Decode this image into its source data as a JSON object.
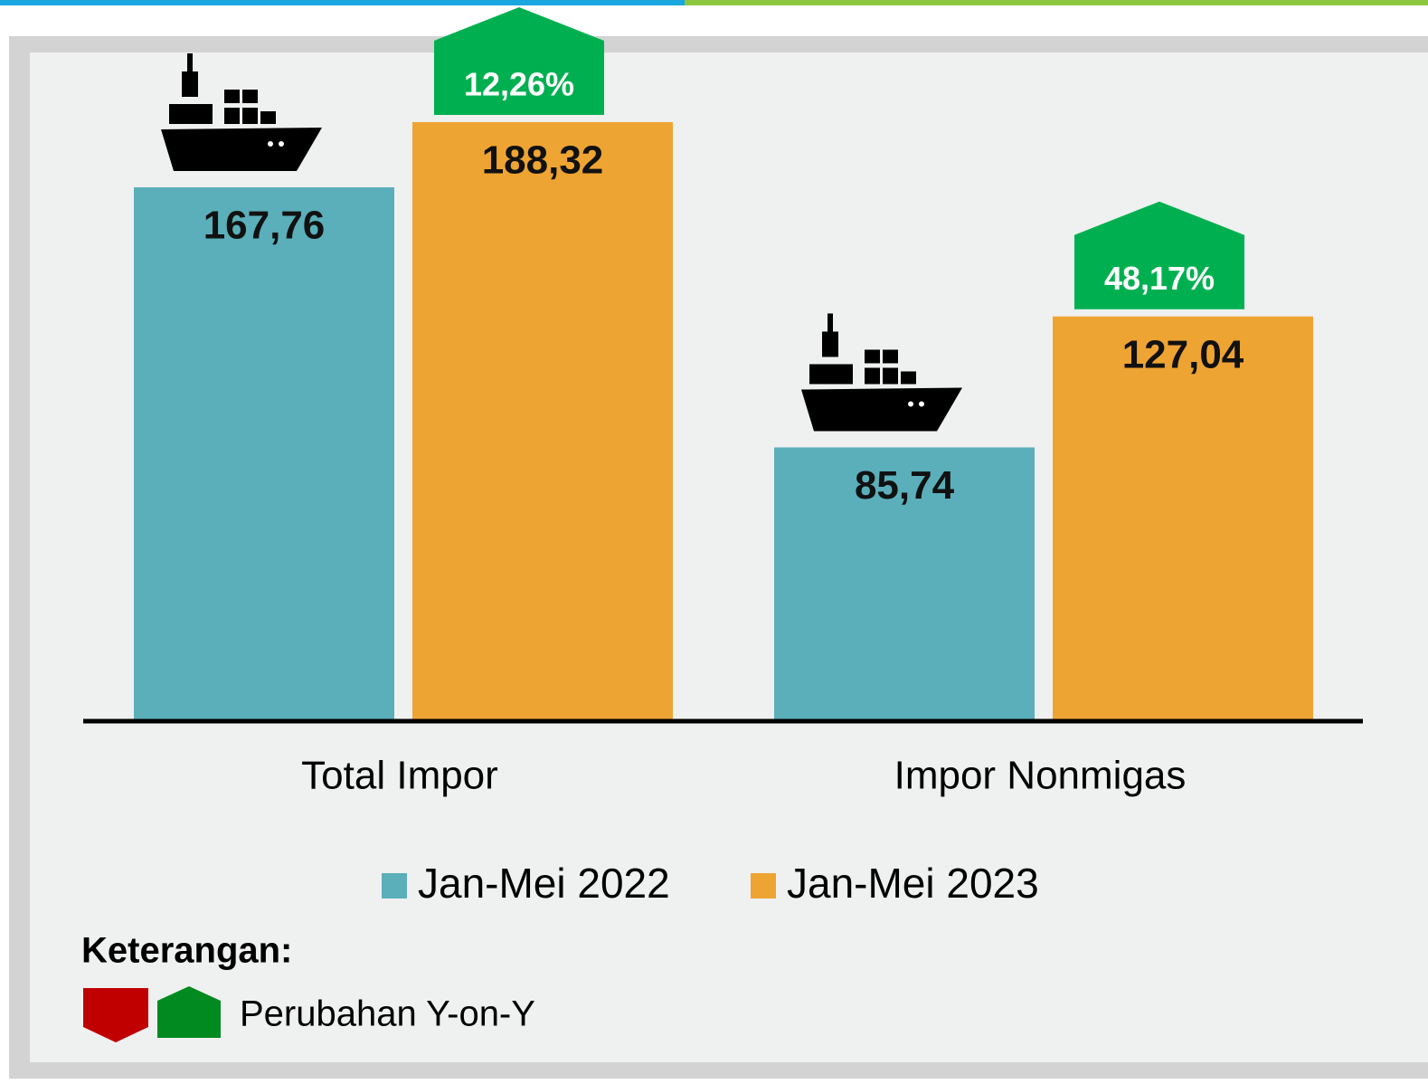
{
  "chart_data": {
    "type": "bar",
    "categories": [
      "Total Impor",
      "Impor Nonmigas"
    ],
    "series": [
      {
        "name": "Jan-Mei 2022",
        "color": "#5aafba",
        "values": [
          167.76,
          85.74
        ],
        "value_labels": [
          "167,76",
          "85,74"
        ]
      },
      {
        "name": "Jan-Mei 2023",
        "color": "#eea432",
        "values": [
          188.32,
          127.04
        ],
        "value_labels": [
          "188,32",
          "127,04"
        ],
        "changes": [
          {
            "value": 12.26,
            "label": "12,26%"
          },
          {
            "value": 48.17,
            "label": "48,17%"
          }
        ],
        "change_color": "#00b050"
      }
    ],
    "notes_title": "Keterangan:",
    "notes_label": "Perubahan Y-on-Y"
  }
}
